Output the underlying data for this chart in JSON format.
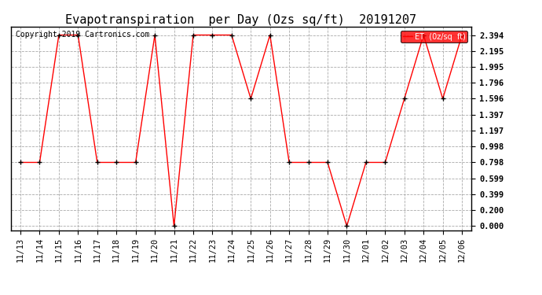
{
  "title": "Evapotranspiration  per Day (Ozs sq/ft)  20191207",
  "copyright": "Copyright 2019 Cartronics.com",
  "legend_label": "ET  (0z/sq  ft)",
  "dates": [
    "11/13",
    "11/14",
    "11/15",
    "11/16",
    "11/17",
    "11/18",
    "11/19",
    "11/20",
    "11/21",
    "11/22",
    "11/23",
    "11/24",
    "11/25",
    "11/26",
    "11/27",
    "11/28",
    "11/29",
    "11/30",
    "12/01",
    "12/02",
    "12/03",
    "12/04",
    "12/05",
    "12/06"
  ],
  "values": [
    0.798,
    0.798,
    2.394,
    2.394,
    0.798,
    0.798,
    0.798,
    2.394,
    0.0,
    2.394,
    2.394,
    2.394,
    1.596,
    2.394,
    0.798,
    0.798,
    0.798,
    0.0,
    0.798,
    0.798,
    1.596,
    2.394,
    1.596,
    2.394
  ],
  "line_color": "red",
  "marker_color": "black",
  "background_color": "#ffffff",
  "grid_color": "#aaaaaa",
  "yticks": [
    0.0,
    0.2,
    0.399,
    0.599,
    0.798,
    0.998,
    1.197,
    1.397,
    1.596,
    1.796,
    1.995,
    2.195,
    2.394
  ],
  "ylim": [
    -0.05,
    2.5
  ],
  "legend_bg": "red",
  "legend_fg": "white",
  "title_fontsize": 11,
  "copyright_fontsize": 7,
  "tick_fontsize": 7.5,
  "axis_border_color": "black"
}
